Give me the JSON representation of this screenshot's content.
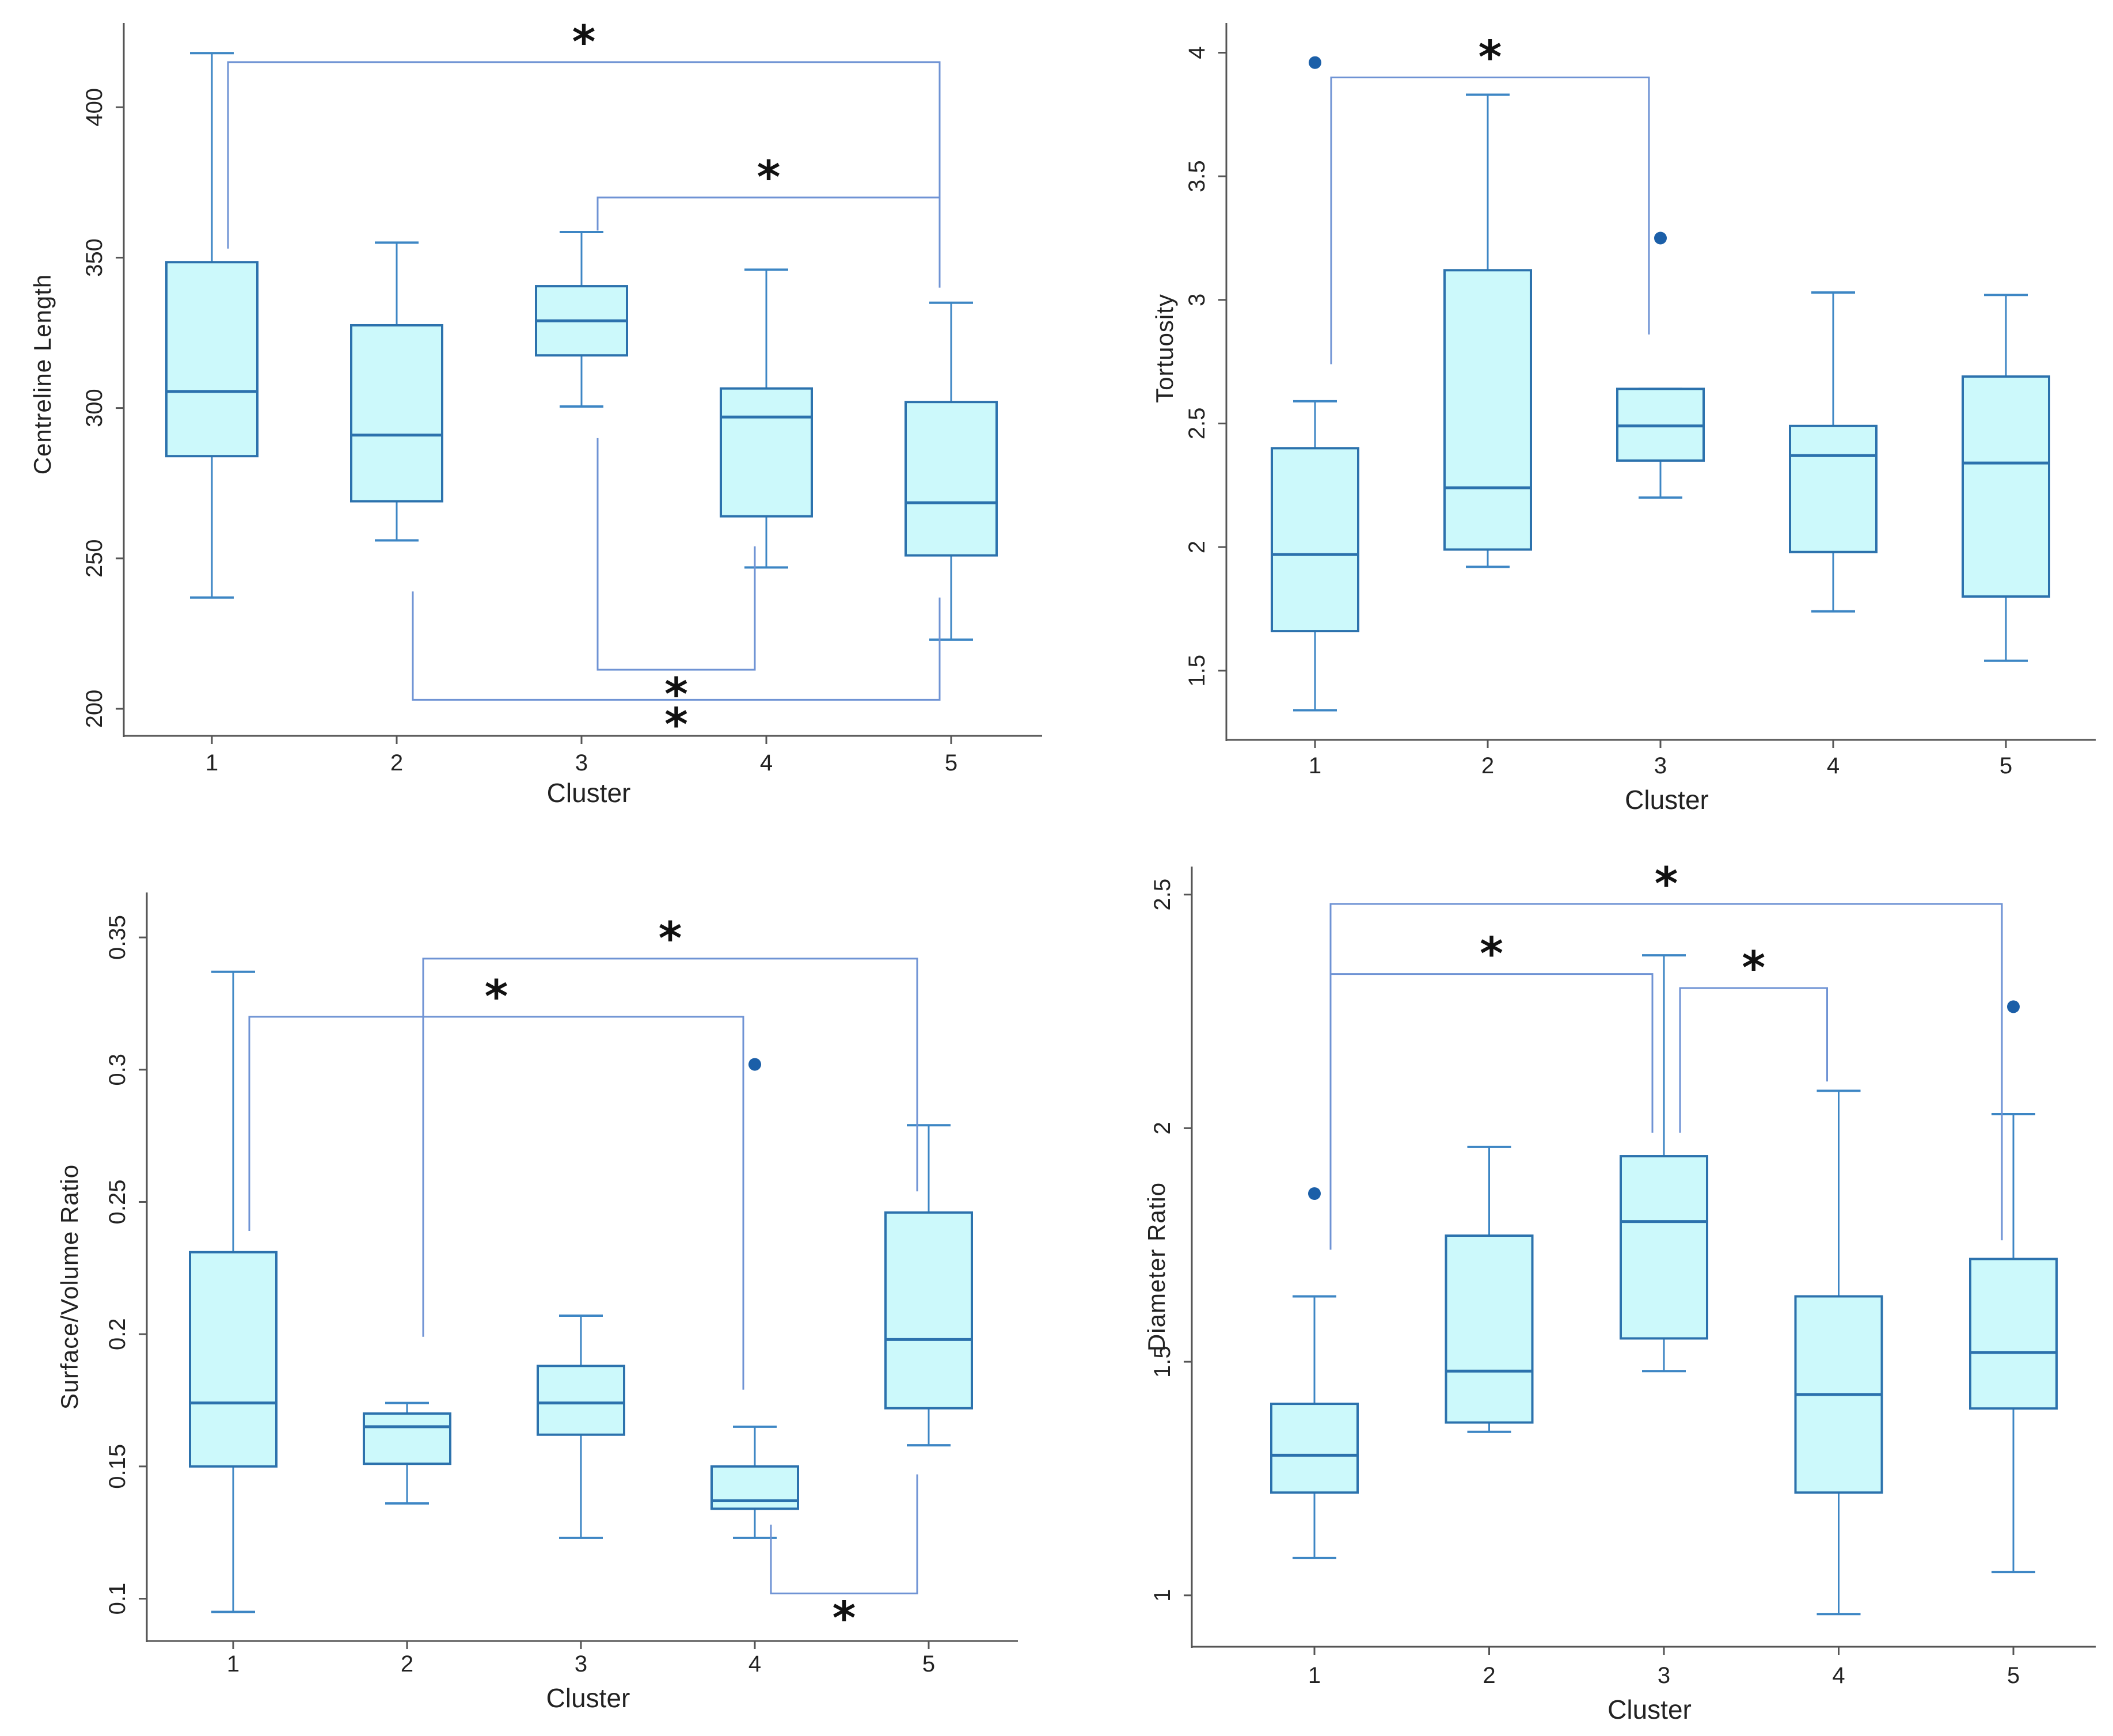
{
  "colors": {
    "box_fill": "#ccf9fb",
    "box_stroke": "#2c72ad",
    "whisker": "#3d86c4",
    "outlier": "#1b5fa8",
    "bracket": "#6f93d4",
    "axis": "#555555"
  },
  "significance_marker": "*",
  "chart_data": [
    {
      "type": "box",
      "xlabel": "Cluster",
      "ylabel": "Centreline Length",
      "ylim": [
        191,
        428
      ],
      "yticks": [
        "200",
        "250",
        "300",
        "350",
        "400"
      ],
      "categories": [
        "1",
        "2",
        "3",
        "4",
        "5"
      ],
      "boxes": [
        {
          "min": 237,
          "q1": 284,
          "median": 305.5,
          "q3": 348.5,
          "max": 418,
          "outliers": []
        },
        {
          "min": 256,
          "q1": 269,
          "median": 291,
          "q3": 327.5,
          "max": 355,
          "outliers": []
        },
        {
          "min": 300.5,
          "q1": 317.5,
          "median": 329,
          "q3": 340.5,
          "max": 358.5,
          "outliers": []
        },
        {
          "min": 247,
          "q1": 264,
          "median": 297,
          "q3": 306.5,
          "max": 346,
          "outliers": []
        },
        {
          "min": 223,
          "q1": 251,
          "median": 268.5,
          "q3": 302,
          "max": 335,
          "outliers": []
        }
      ],
      "comparisons": [
        {
          "from": 1,
          "to": 5,
          "level": 415,
          "from_end": 353,
          "to_end": 340,
          "label": "*"
        },
        {
          "from": 3,
          "to": 5,
          "level": 370,
          "from_end": 359,
          "to_end": 350,
          "label": "*"
        },
        {
          "from": 3,
          "to": 4,
          "level": 213,
          "from_end": 290,
          "to_end": 254,
          "label": "*"
        },
        {
          "from": 2,
          "to": 5,
          "level": 203,
          "from_end": 239,
          "to_end": 237,
          "label": "*"
        }
      ]
    },
    {
      "type": "box",
      "xlabel": "Cluster",
      "ylabel": "Tortuosity",
      "ylim": [
        1.22,
        4.12
      ],
      "yticks": [
        "1.5",
        "2",
        "2.5",
        "3",
        "3.5",
        "4"
      ],
      "categories": [
        "1",
        "2",
        "3",
        "4",
        "5"
      ],
      "boxes": [
        {
          "min": 1.34,
          "q1": 1.66,
          "median": 1.97,
          "q3": 2.4,
          "max": 2.59,
          "outliers": [
            3.96
          ]
        },
        {
          "min": 1.92,
          "q1": 1.99,
          "median": 2.24,
          "q3": 3.12,
          "max": 3.83,
          "outliers": []
        },
        {
          "min": 2.2,
          "q1": 2.35,
          "median": 2.49,
          "q3": 2.64,
          "max": 2.64,
          "outliers": [
            3.25
          ]
        },
        {
          "min": 1.74,
          "q1": 1.98,
          "median": 2.37,
          "q3": 2.49,
          "max": 3.03,
          "outliers": []
        },
        {
          "min": 1.54,
          "q1": 1.8,
          "median": 2.34,
          "q3": 2.69,
          "max": 3.02,
          "outliers": []
        }
      ],
      "comparisons": [
        {
          "from": 1,
          "to": 3,
          "level": 3.9,
          "from_end": 2.74,
          "to_end": 2.86,
          "label": "*"
        }
      ]
    },
    {
      "type": "box",
      "xlabel": "Cluster",
      "ylabel": "Surface/Volume Ratio",
      "ylim": [
        0.084,
        0.367
      ],
      "yticks": [
        "0.1",
        "0.15",
        "0.2",
        "0.25",
        "0.3",
        "0.35"
      ],
      "categories": [
        "1",
        "2",
        "3",
        "4",
        "5"
      ],
      "boxes": [
        {
          "min": 0.095,
          "q1": 0.15,
          "median": 0.174,
          "q3": 0.231,
          "max": 0.337,
          "outliers": []
        },
        {
          "min": 0.136,
          "q1": 0.151,
          "median": 0.165,
          "q3": 0.17,
          "max": 0.174,
          "outliers": []
        },
        {
          "min": 0.123,
          "q1": 0.162,
          "median": 0.174,
          "q3": 0.188,
          "max": 0.207,
          "outliers": []
        },
        {
          "min": 0.123,
          "q1": 0.134,
          "median": 0.137,
          "q3": 0.15,
          "max": 0.165,
          "outliers": [
            0.302
          ]
        },
        {
          "min": 0.158,
          "q1": 0.172,
          "median": 0.198,
          "q3": 0.246,
          "max": 0.279,
          "outliers": []
        }
      ],
      "comparisons": [
        {
          "from": 2,
          "to": 5,
          "level": 0.342,
          "from_end": 0.199,
          "to_end": 0.254,
          "label": "*"
        },
        {
          "from": 1,
          "to": 4,
          "level": 0.32,
          "from_end": 0.239,
          "to_end": 0.179,
          "label": "*"
        },
        {
          "from": 4,
          "to": 5,
          "level": 0.102,
          "from_end": 0.128,
          "to_end": 0.147,
          "label": "*"
        }
      ]
    },
    {
      "type": "box",
      "xlabel": "Cluster",
      "ylabel": "Diameter Ratio",
      "ylim": [
        0.89,
        2.56
      ],
      "yticks": [
        "1",
        "1.5",
        "2",
        "2.5"
      ],
      "categories": [
        "1",
        "2",
        "3",
        "4",
        "5"
      ],
      "boxes": [
        {
          "min": 1.08,
          "q1": 1.22,
          "median": 1.3,
          "q3": 1.41,
          "max": 1.64,
          "outliers": [
            1.86
          ]
        },
        {
          "min": 1.35,
          "q1": 1.37,
          "median": 1.48,
          "q3": 1.77,
          "max": 1.96,
          "outliers": []
        },
        {
          "min": 1.48,
          "q1": 1.55,
          "median": 1.8,
          "q3": 1.94,
          "max": 2.37,
          "outliers": []
        },
        {
          "min": 0.96,
          "q1": 1.22,
          "median": 1.43,
          "q3": 1.64,
          "max": 2.08,
          "outliers": []
        },
        {
          "min": 1.05,
          "q1": 1.4,
          "median": 1.52,
          "q3": 1.72,
          "max": 2.03,
          "outliers": [
            2.26
          ]
        }
      ],
      "comparisons": [
        {
          "from": 1,
          "to": 5,
          "level": 2.48,
          "from_end": 1.74,
          "to_end": 1.76,
          "label": "*"
        },
        {
          "from": 1,
          "to": 3,
          "level": 2.33,
          "from_end": 1.74,
          "to_end": 1.99,
          "label": "*"
        },
        {
          "from": 3,
          "to": 4,
          "level": 2.3,
          "from_end": 1.99,
          "to_end": 2.1,
          "label": "*"
        }
      ]
    }
  ]
}
